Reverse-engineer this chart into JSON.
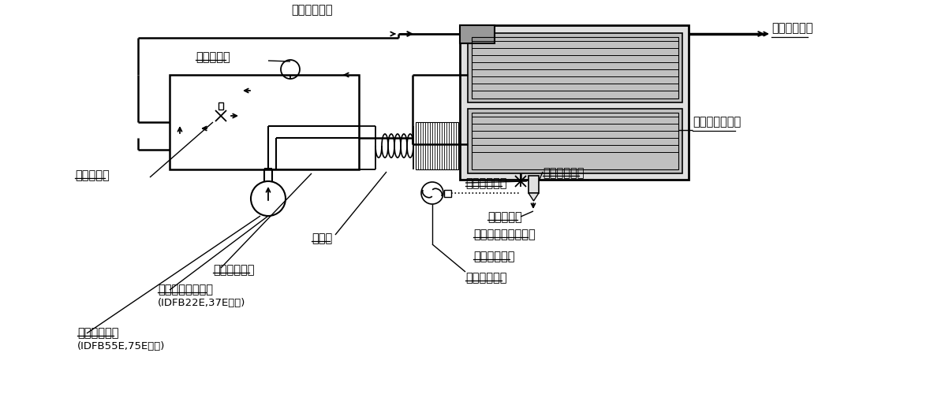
{
  "bg_color": "#ffffff",
  "lc": "#000000",
  "gc1": "#b8b8b8",
  "gc2": "#d0d0d0",
  "labels": {
    "compressed_air_in": "圧縮空気入口",
    "compressed_air_out": "圧縮空気出口",
    "evap_thermometer": "讒発温度計",
    "cooler_heater": "クーラリヒータ",
    "ball_valve": "ボールバルブ",
    "auto_drain": "オートドレン",
    "drain_outlet": "ドレン出口",
    "capillary_tube": "キャピラリチューブ",
    "pressure_switch": "圧力スイッチ",
    "fan_motor": "ファンモータ",
    "volume_control_valve": "容量調整弁",
    "condenser": "凝縮器",
    "refrigerant_compressor": "冷凍用圧縮機",
    "accumulator": "アキュームレータ",
    "accumulator_sub": "(IDFB22E,37Eのみ)",
    "high_pressure_switch": "高圧スイッチ",
    "high_pressure_sub": "(IDFB55E,75Eのみ)"
  }
}
